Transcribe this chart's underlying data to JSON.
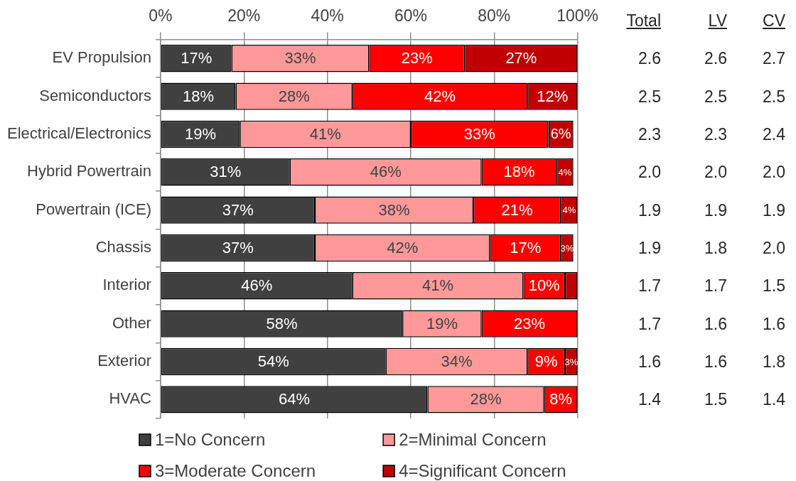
{
  "chart_data": [
    {
      "type": "bar",
      "orientation": "horizontal",
      "stacked": true,
      "categories": [
        "EV Propulsion",
        "Semiconductors",
        "Electrical/Electronics",
        "Hybrid Powertrain",
        "Powertrain (ICE)",
        "Chassis",
        "Interior",
        "Other",
        "Exterior",
        "HVAC"
      ],
      "series": [
        {
          "name": "1=No Concern",
          "color": "#404040",
          "values": [
            17,
            18,
            19,
            31,
            37,
            37,
            46,
            58,
            54,
            64
          ],
          "value_labels": [
            "17%",
            "18%",
            "19%",
            "31%",
            "37%",
            "37%",
            "46%",
            "58%",
            "54%",
            "64%"
          ]
        },
        {
          "name": "2=Minimal Concern",
          "color": "#ff9999",
          "values": [
            33,
            28,
            41,
            46,
            38,
            42,
            41,
            19,
            34,
            28
          ],
          "value_labels": [
            "33%",
            "28%",
            "41%",
            "46%",
            "38%",
            "42%",
            "41%",
            "19%",
            "34%",
            "28%"
          ]
        },
        {
          "name": "3=Moderate Concern",
          "color": "#ff0000",
          "values": [
            23,
            42,
            33,
            18,
            21,
            17,
            10,
            23,
            9,
            8
          ],
          "value_labels": [
            "23%",
            "42%",
            "33%",
            "18%",
            "21%",
            "17%",
            "10%",
            "23%",
            "9%",
            "8%"
          ]
        },
        {
          "name": "4=Significant Concern",
          "color": "#c00000",
          "values": [
            27,
            12,
            6,
            4,
            4,
            3,
            3,
            null,
            3,
            null
          ],
          "value_labels": [
            "27%",
            "12%",
            "6%",
            "4%",
            "4%",
            "3%",
            null,
            null,
            "3%",
            null
          ]
        }
      ],
      "xlim": [
        0,
        100
      ],
      "xticks": [
        {
          "value": 0,
          "label": "0%"
        },
        {
          "value": 20,
          "label": "20%"
        },
        {
          "value": 40,
          "label": "40%"
        },
        {
          "value": 60,
          "label": "60%"
        },
        {
          "value": 80,
          "label": "80%"
        },
        {
          "value": 100,
          "label": "100%"
        }
      ],
      "grid": "x",
      "legend": "bottom"
    },
    {
      "type": "heatmap",
      "tick_labels": "x",
      "categories": [
        "Total",
        "LV",
        "CV"
      ],
      "y_categories": [
        null,
        null,
        null,
        null,
        null,
        null,
        null,
        null,
        null,
        null
      ],
      "cells": [
        [
          2.6,
          2.6,
          2.7
        ],
        [
          2.5,
          2.5,
          2.5
        ],
        [
          2.3,
          2.3,
          2.4
        ],
        [
          2.0,
          2.0,
          2.0
        ],
        [
          1.9,
          1.9,
          1.9
        ],
        [
          1.9,
          1.8,
          2.0
        ],
        [
          1.7,
          1.7,
          1.5
        ],
        [
          1.7,
          1.6,
          1.6
        ],
        [
          1.6,
          1.6,
          1.8
        ],
        [
          1.4,
          1.5,
          1.4
        ]
      ],
      "cell_labels": [
        [
          "2.6",
          "2.6",
          "2.7"
        ],
        [
          "2.5",
          "2.5",
          "2.5"
        ],
        [
          "2.3",
          "2.3",
          "2.4"
        ],
        [
          "2.0",
          "2.0",
          "2.0"
        ],
        [
          "1.9",
          "1.9",
          "1.9"
        ],
        [
          "1.9",
          "1.8",
          "2.0"
        ],
        [
          "1.7",
          "1.7",
          "1.5"
        ],
        [
          "1.7",
          "1.6",
          "1.6"
        ],
        [
          "1.6",
          "1.6",
          "1.8"
        ],
        [
          "1.4",
          "1.5",
          "1.4"
        ]
      ]
    }
  ]
}
